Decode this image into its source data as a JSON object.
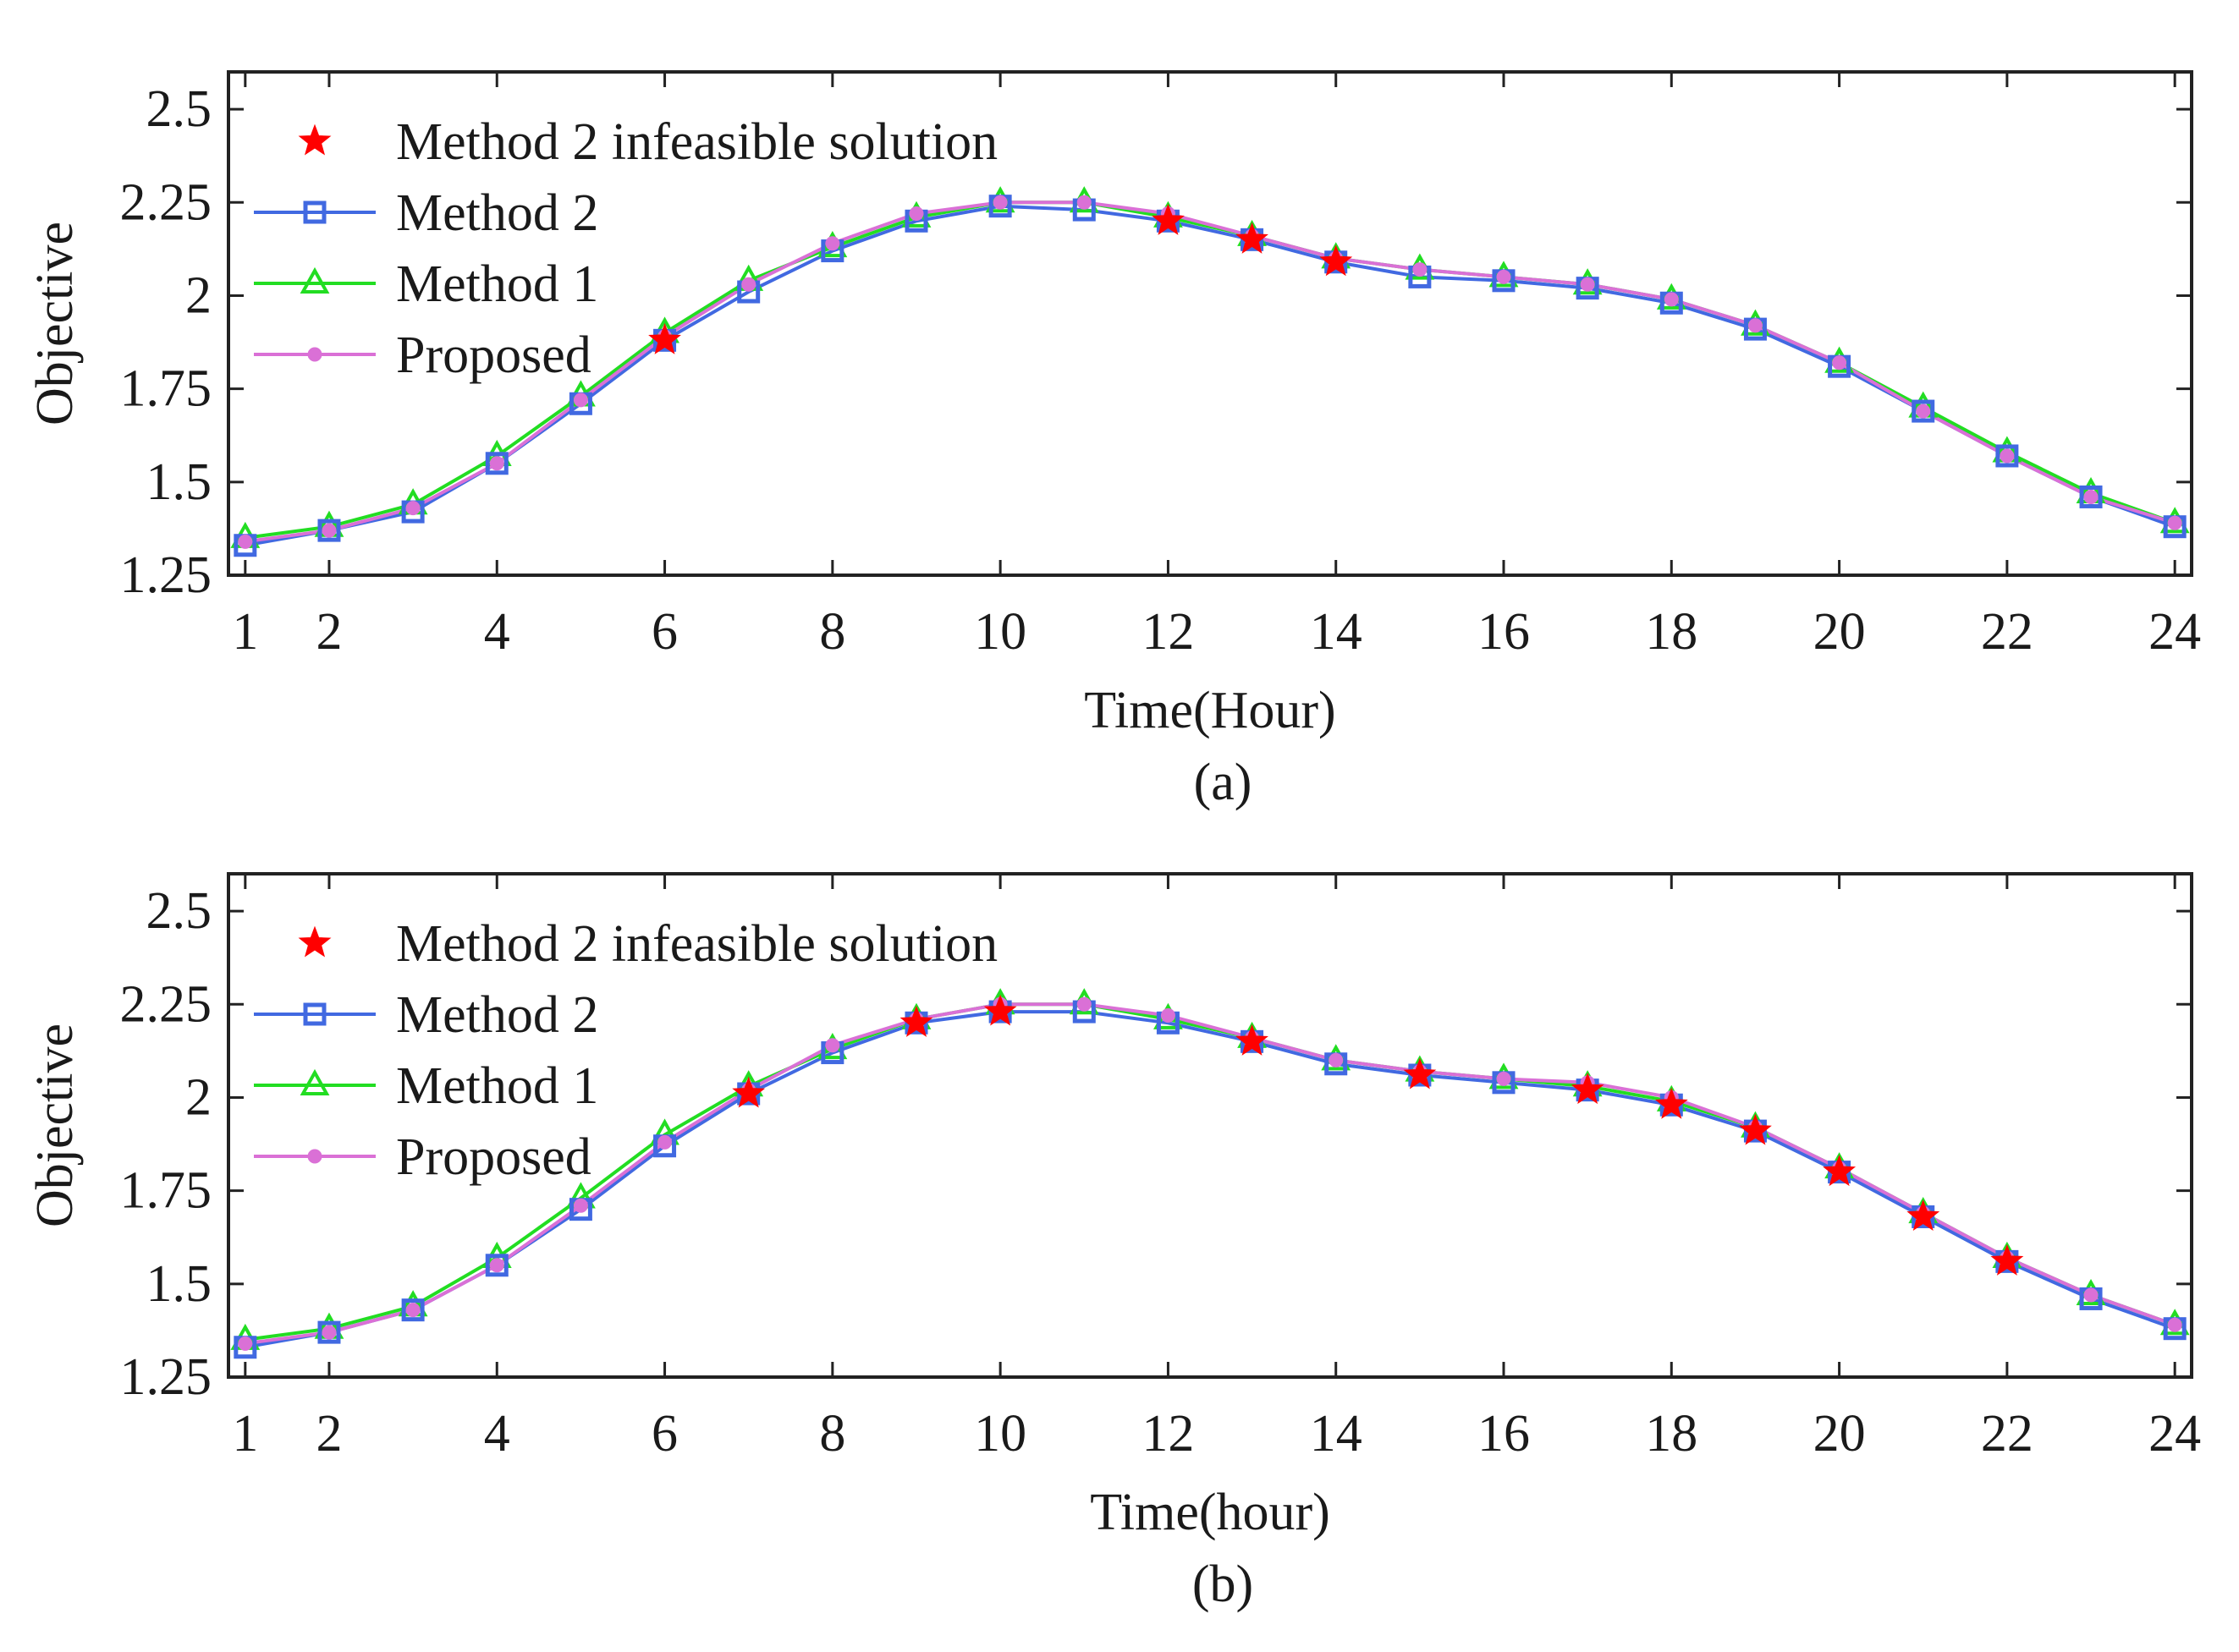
{
  "chart_data": [
    {
      "type": "line",
      "caption": "(a)",
      "xlabel": "Time(Hour)",
      "ylabel": "Objective",
      "xlim": [
        0.8,
        24.2
      ],
      "ylim": [
        1.25,
        2.6
      ],
      "xticks": [
        1,
        2,
        4,
        6,
        8,
        10,
        12,
        14,
        16,
        18,
        20,
        22,
        24
      ],
      "xtick_labels": [
        "1",
        "2",
        "4",
        "6",
        "8",
        "10",
        "12",
        "14",
        "16",
        "18",
        "20",
        "22",
        "24"
      ],
      "yticks": [
        1.25,
        1.5,
        1.75,
        2,
        2.25,
        2.5
      ],
      "ytick_labels": [
        "1.25",
        "1.5",
        "1.75",
        "2",
        "2.25",
        "2.5"
      ],
      "x": [
        1,
        2,
        3,
        4,
        5,
        6,
        7,
        8,
        9,
        10,
        11,
        12,
        13,
        14,
        15,
        16,
        17,
        18,
        19,
        20,
        21,
        22,
        23,
        24
      ],
      "legend": [
        "Method 2 infeasible solution",
        "Method 2",
        "Method 1",
        "Proposed"
      ],
      "series": [
        {
          "name": "Method 2",
          "color": "#4169e1",
          "marker": "square",
          "line": true,
          "values": [
            1.33,
            1.37,
            1.42,
            1.55,
            1.71,
            1.88,
            2.01,
            2.12,
            2.2,
            2.24,
            2.23,
            2.2,
            2.15,
            2.09,
            2.05,
            2.04,
            2.02,
            1.98,
            1.91,
            1.81,
            1.69,
            1.57,
            1.46,
            1.38
          ]
        },
        {
          "name": "Method 1",
          "color": "#22dd22",
          "marker": "triangle",
          "line": true,
          "values": [
            1.35,
            1.38,
            1.44,
            1.57,
            1.73,
            1.9,
            2.04,
            2.13,
            2.21,
            2.25,
            2.25,
            2.21,
            2.16,
            2.1,
            2.07,
            2.05,
            2.03,
            1.99,
            1.92,
            1.82,
            1.7,
            1.58,
            1.47,
            1.39
          ]
        },
        {
          "name": "Proposed",
          "color": "#da70d6",
          "marker": "dot",
          "line": true,
          "values": [
            1.34,
            1.37,
            1.43,
            1.55,
            1.72,
            1.89,
            2.03,
            2.14,
            2.22,
            2.25,
            2.25,
            2.22,
            2.16,
            2.1,
            2.07,
            2.05,
            2.03,
            1.99,
            1.92,
            1.82,
            1.69,
            1.57,
            1.46,
            1.39
          ]
        },
        {
          "name": "Method 2 infeasible solution",
          "color": "#ff0000",
          "marker": "star",
          "line": false,
          "x": [
            6,
            12,
            13,
            14
          ],
          "values": [
            1.88,
            2.2,
            2.15,
            2.09
          ]
        }
      ]
    },
    {
      "type": "line",
      "caption": "(b)",
      "xlabel": "Time(hour)",
      "ylabel": "Objective",
      "xlim": [
        0.8,
        24.2
      ],
      "ylim": [
        1.25,
        2.6
      ],
      "xticks": [
        1,
        2,
        4,
        6,
        8,
        10,
        12,
        14,
        16,
        18,
        20,
        22,
        24
      ],
      "xtick_labels": [
        "1",
        "2",
        "4",
        "6",
        "8",
        "10",
        "12",
        "14",
        "16",
        "18",
        "20",
        "22",
        "24"
      ],
      "yticks": [
        1.25,
        1.5,
        1.75,
        2,
        2.25,
        2.5
      ],
      "ytick_labels": [
        "1.25",
        "1.5",
        "1.75",
        "2",
        "2.25",
        "2.5"
      ],
      "x": [
        1,
        2,
        3,
        4,
        5,
        6,
        7,
        8,
        9,
        10,
        11,
        12,
        13,
        14,
        15,
        16,
        17,
        18,
        19,
        20,
        21,
        22,
        23,
        24
      ],
      "legend": [
        "Method 2 infeasible solution",
        "Method 2",
        "Method 1",
        "Proposed"
      ],
      "series": [
        {
          "name": "Method 2",
          "color": "#4169e1",
          "marker": "square",
          "line": true,
          "values": [
            1.33,
            1.37,
            1.43,
            1.55,
            1.7,
            1.87,
            2.01,
            2.12,
            2.2,
            2.23,
            2.23,
            2.2,
            2.15,
            2.09,
            2.06,
            2.04,
            2.02,
            1.98,
            1.91,
            1.8,
            1.68,
            1.56,
            1.46,
            1.38
          ]
        },
        {
          "name": "Method 1",
          "color": "#22dd22",
          "marker": "triangle",
          "line": true,
          "values": [
            1.35,
            1.38,
            1.44,
            1.57,
            1.73,
            1.9,
            2.03,
            2.13,
            2.21,
            2.25,
            2.25,
            2.21,
            2.16,
            2.1,
            2.07,
            2.05,
            2.03,
            1.99,
            1.92,
            1.81,
            1.69,
            1.57,
            1.47,
            1.39
          ]
        },
        {
          "name": "Proposed",
          "color": "#da70d6",
          "marker": "dot",
          "line": true,
          "values": [
            1.34,
            1.37,
            1.43,
            1.55,
            1.71,
            1.88,
            2.02,
            2.14,
            2.21,
            2.25,
            2.25,
            2.22,
            2.16,
            2.1,
            2.07,
            2.05,
            2.04,
            2.0,
            1.92,
            1.81,
            1.69,
            1.57,
            1.47,
            1.39
          ]
        },
        {
          "name": "Method 2 infeasible solution",
          "color": "#ff0000",
          "marker": "star",
          "line": false,
          "x": [
            7,
            9,
            10,
            13,
            15,
            17,
            18,
            19,
            20,
            21,
            22
          ],
          "values": [
            2.01,
            2.2,
            2.23,
            2.15,
            2.06,
            2.02,
            1.98,
            1.91,
            1.8,
            1.68,
            1.56
          ]
        }
      ]
    }
  ]
}
